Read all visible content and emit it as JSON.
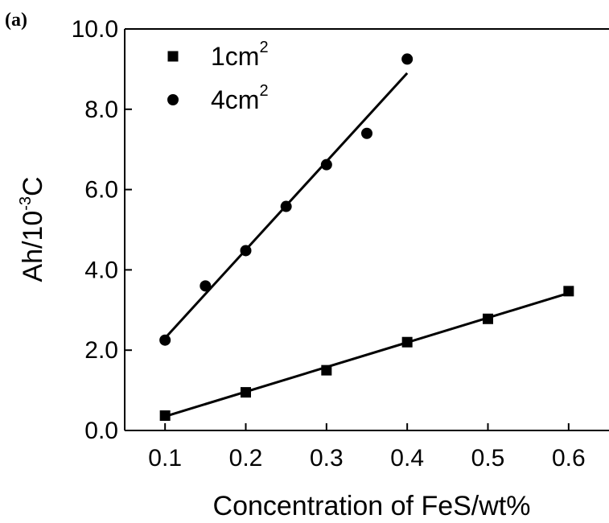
{
  "chart_data": {
    "type": "scatter",
    "panel_label": "(a)",
    "xlabel": "Concentration of FeS/wt%",
    "ylabel_parts": [
      "Ah/10",
      "-3",
      "C"
    ],
    "xlim": [
      0.05,
      0.65
    ],
    "ylim": [
      0.0,
      10.0
    ],
    "x_ticks": [
      0.1,
      0.2,
      0.3,
      0.4,
      0.5,
      0.6
    ],
    "x_tick_labels": [
      "0.1",
      "0.2",
      "0.3",
      "0.4",
      "0.5",
      "0.6"
    ],
    "y_ticks": [
      0.0,
      2.0,
      4.0,
      6.0,
      8.0,
      10.0
    ],
    "y_tick_labels": [
      "0.0",
      "2.0",
      "4.0",
      "6.0",
      "8.0",
      "10.0"
    ],
    "grid": false,
    "legend_position": "top-left",
    "series": [
      {
        "name_parts": [
          "1cm",
          "2"
        ],
        "marker": "square",
        "x": [
          0.1,
          0.2,
          0.3,
          0.4,
          0.5,
          0.6
        ],
        "y": [
          0.37,
          0.95,
          1.5,
          2.2,
          2.78,
          3.47
        ],
        "fit": {
          "x": [
            0.1,
            0.6
          ],
          "y": [
            0.35,
            3.42
          ]
        }
      },
      {
        "name_parts": [
          "4cm",
          "2"
        ],
        "marker": "circle",
        "x": [
          0.1,
          0.15,
          0.2,
          0.25,
          0.3,
          0.35,
          0.4
        ],
        "y": [
          2.25,
          3.6,
          4.48,
          5.58,
          6.62,
          7.4,
          9.25
        ],
        "fit": {
          "x": [
            0.1,
            0.4
          ],
          "y": [
            2.3,
            8.9
          ]
        }
      }
    ]
  }
}
